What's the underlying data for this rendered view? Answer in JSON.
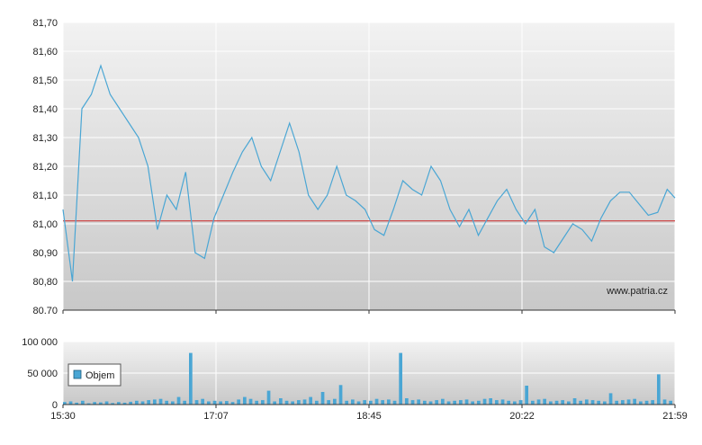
{
  "watermark": "www.patria.cz",
  "chart_data": [
    {
      "type": "line",
      "title": "",
      "xlabel": "",
      "ylabel": "",
      "ylim": [
        80.7,
        81.7
      ],
      "yticks": [
        "81,70",
        "81,60",
        "81,50",
        "81,40",
        "81,30",
        "81,20",
        "81,10",
        "81,00",
        "80,90",
        "80,80",
        "80.70"
      ],
      "xticks": [
        "15:30",
        "17:07",
        "18:45",
        "20:22",
        "21:59"
      ],
      "reference_line": {
        "value": 81.01,
        "color": "#cc2222"
      },
      "line_color": "#4aa6d4",
      "grid": true,
      "series": [
        {
          "name": "",
          "x": [
            "15:30",
            "15:36",
            "15:42",
            "15:48",
            "15:54",
            "16:00",
            "16:06",
            "16:12",
            "16:18",
            "16:24",
            "16:30",
            "16:36",
            "16:42",
            "16:48",
            "16:54",
            "17:00",
            "17:06",
            "17:12",
            "17:18",
            "17:24",
            "17:30",
            "17:36",
            "17:42",
            "17:48",
            "17:54",
            "18:00",
            "18:06",
            "18:12",
            "18:18",
            "18:24",
            "18:30",
            "18:36",
            "18:42",
            "18:48",
            "18:54",
            "19:00",
            "19:06",
            "19:12",
            "19:18",
            "19:24",
            "19:30",
            "19:36",
            "19:42",
            "19:48",
            "19:54",
            "20:00",
            "20:06",
            "20:12",
            "20:18",
            "20:24",
            "20:30",
            "20:36",
            "20:42",
            "20:48",
            "20:54",
            "21:00",
            "21:06",
            "21:12",
            "21:18",
            "21:24",
            "21:30",
            "21:36",
            "21:42",
            "21:48",
            "21:54",
            "21:59"
          ],
          "values": [
            81.05,
            80.8,
            81.4,
            81.45,
            81.55,
            81.45,
            81.4,
            81.35,
            81.3,
            81.2,
            80.98,
            81.1,
            81.05,
            81.18,
            80.9,
            80.88,
            81.02,
            81.1,
            81.18,
            81.25,
            81.3,
            81.2,
            81.15,
            81.25,
            81.35,
            81.25,
            81.1,
            81.05,
            81.1,
            81.2,
            81.1,
            81.08,
            81.05,
            80.98,
            80.96,
            81.05,
            81.15,
            81.12,
            81.1,
            81.2,
            81.15,
            81.05,
            80.99,
            81.05,
            80.96,
            81.02,
            81.08,
            81.12,
            81.05,
            81.0,
            81.05,
            80.92,
            80.9,
            80.95,
            81.0,
            80.98,
            80.94,
            81.02,
            81.08,
            81.11,
            81.11,
            81.07,
            81.03,
            81.04,
            81.12,
            81.09
          ]
        }
      ]
    },
    {
      "type": "bar",
      "title": "",
      "ylim": [
        0,
        100000
      ],
      "yticks": [
        "100 000",
        "50 000",
        "0"
      ],
      "xticks": [
        "15:30",
        "17:07",
        "18:45",
        "20:22",
        "21:59"
      ],
      "bar_color": "#4aa6d4",
      "legend": {
        "label": "Objem",
        "placement": "left"
      },
      "series": [
        {
          "name": "Objem",
          "values": [
            4000,
            5000,
            3000,
            6000,
            2000,
            4000,
            3500,
            5000,
            2500,
            4000,
            3000,
            4500,
            6000,
            5000,
            7000,
            8000,
            9000,
            6000,
            5000,
            12000,
            6000,
            82000,
            7000,
            9000,
            5000,
            6000,
            5000,
            5500,
            4000,
            8000,
            12000,
            9000,
            6000,
            7000,
            22000,
            5000,
            10000,
            6000,
            5000,
            7000,
            8000,
            12000,
            6000,
            20000,
            7000,
            9000,
            31000,
            6000,
            8000,
            5000,
            7000,
            6000,
            9000,
            7000,
            8000,
            6000,
            82000,
            10000,
            7000,
            8000,
            6000,
            5000,
            7000,
            9000,
            5000,
            6000,
            7000,
            8000,
            5000,
            6000,
            9000,
            10000,
            7000,
            8000,
            6000,
            5000,
            7000,
            30000,
            6000,
            8000,
            9000,
            5000,
            6000,
            7000,
            5000,
            10000,
            6000,
            8000,
            7000,
            6000,
            5000,
            18000,
            6000,
            7000,
            8000,
            9000,
            5000,
            6000,
            7000,
            48000,
            8000,
            6000
          ]
        }
      ]
    }
  ]
}
